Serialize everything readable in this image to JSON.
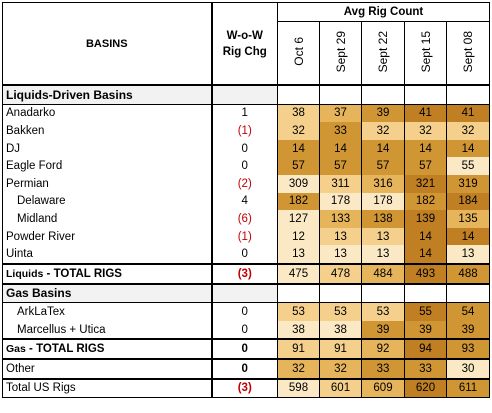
{
  "header": {
    "basins": "BASINS",
    "wow_line1": "W-o-W",
    "wow_line2": "Rig Chg",
    "avg_rig_count": "Avg Rig Count",
    "dates": [
      "Oct 6",
      "Sept 29",
      "Sept 22",
      "Sept 15",
      "Sept 08"
    ]
  },
  "colors": {
    "lightest": "#fbe9c6",
    "light": "#f4d08c",
    "medium": "#e6b45a",
    "dark": "#d19634",
    "darkest": "#bf7f22",
    "red_text": "#c00000"
  },
  "liquids_section": "Liquids-Driven Basins",
  "liquids_rows": [
    {
      "name": "Anadarko",
      "wow": "1",
      "neg": false,
      "values": [
        "38",
        "37",
        "39",
        "41",
        "41"
      ],
      "shades": [
        "light",
        "medium",
        "dark",
        "darkest",
        "darkest"
      ]
    },
    {
      "name": "Bakken",
      "wow": "(1)",
      "neg": true,
      "values": [
        "32",
        "33",
        "32",
        "32",
        "32"
      ],
      "shades": [
        "light",
        "dark",
        "light",
        "light",
        "light"
      ]
    },
    {
      "name": "DJ",
      "wow": "0",
      "neg": false,
      "values": [
        "14",
        "14",
        "14",
        "14",
        "14"
      ],
      "shades": [
        "dark",
        "dark",
        "dark",
        "dark",
        "dark"
      ]
    },
    {
      "name": "Eagle Ford",
      "wow": "0",
      "neg": false,
      "values": [
        "57",
        "57",
        "57",
        "57",
        "55"
      ],
      "shades": [
        "dark",
        "dark",
        "dark",
        "dark",
        "lightest"
      ]
    },
    {
      "name": "Permian",
      "wow": "(2)",
      "neg": true,
      "values": [
        "309",
        "311",
        "316",
        "321",
        "319"
      ],
      "shades": [
        "lightest",
        "light",
        "medium",
        "darkest",
        "dark"
      ]
    },
    {
      "name": "Delaware",
      "wow": "4",
      "neg": false,
      "values": [
        "182",
        "178",
        "178",
        "182",
        "184"
      ],
      "shades": [
        "dark",
        "lightest",
        "lightest",
        "dark",
        "darkest"
      ],
      "sub": true
    },
    {
      "name": "Midland",
      "wow": "(6)",
      "neg": true,
      "values": [
        "127",
        "133",
        "138",
        "139",
        "135"
      ],
      "shades": [
        "lightest",
        "medium",
        "dark",
        "darkest",
        "medium"
      ],
      "sub": true
    },
    {
      "name": "Powder River",
      "wow": "(1)",
      "neg": true,
      "values": [
        "12",
        "13",
        "13",
        "14",
        "14"
      ],
      "shades": [
        "lightest",
        "light",
        "light",
        "darkest",
        "darkest"
      ]
    },
    {
      "name": "Uinta",
      "wow": "0",
      "neg": false,
      "values": [
        "13",
        "13",
        "13",
        "14",
        "13"
      ],
      "shades": [
        "lightest",
        "lightest",
        "lightest",
        "darkest",
        "lightest"
      ]
    }
  ],
  "liquids_total": {
    "label_prefix": "Liquids",
    "label_suffix": " - TOTAL RIGS",
    "wow": "(3)",
    "values": [
      "475",
      "478",
      "484",
      "493",
      "488"
    ],
    "shades": [
      "lightest",
      "light",
      "medium",
      "darkest",
      "dark"
    ]
  },
  "gas_section": "Gas Basins",
  "gas_rows": [
    {
      "name": "ArkLaTex",
      "wow": "0",
      "neg": false,
      "values": [
        "53",
        "53",
        "53",
        "55",
        "54"
      ],
      "shades": [
        "light",
        "light",
        "light",
        "darkest",
        "dark"
      ],
      "sub": true
    },
    {
      "name": "Marcellus + Utica",
      "wow": "0",
      "neg": false,
      "values": [
        "38",
        "38",
        "39",
        "39",
        "39"
      ],
      "shades": [
        "lightest",
        "lightest",
        "dark",
        "dark",
        "dark"
      ],
      "sub": true
    }
  ],
  "gas_total": {
    "label_prefix": "Gas",
    "label_suffix": " - TOTAL RIGS",
    "wow": "0",
    "values": [
      "91",
      "91",
      "92",
      "94",
      "93"
    ],
    "shades": [
      "light",
      "light",
      "medium",
      "darkest",
      "dark"
    ]
  },
  "other": {
    "label": "Other",
    "wow": "0",
    "values": [
      "32",
      "32",
      "33",
      "33",
      "30"
    ],
    "shades": [
      "medium",
      "medium",
      "dark",
      "dark",
      "lightest"
    ]
  },
  "total_us": {
    "label": "Total US Rigs",
    "wow": "(3)",
    "values": [
      "598",
      "601",
      "609",
      "620",
      "611"
    ],
    "shades": [
      "lightest",
      "light",
      "medium",
      "darkest",
      "dark"
    ]
  }
}
